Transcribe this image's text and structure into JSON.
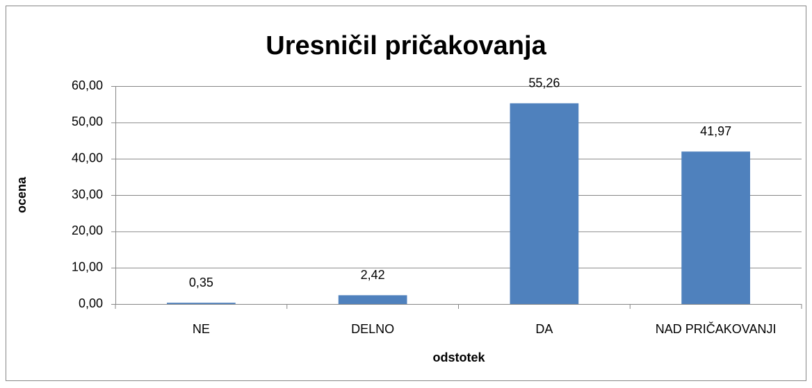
{
  "chart_data": {
    "type": "bar",
    "title": "Uresničil pričakovanja",
    "categories": [
      "NE",
      "DELNO",
      "DA",
      "NAD PRIČAKOVANJI"
    ],
    "values": [
      0.35,
      2.42,
      55.26,
      41.97
    ],
    "value_labels": [
      "0,35",
      "2,42",
      "55,26",
      "41,97"
    ],
    "color": "#4f81bd",
    "x_label": "odstotek",
    "y_label": "ocena",
    "ylim": [
      0,
      60
    ],
    "yticks": [
      {
        "value": 0,
        "label": "0,00"
      },
      {
        "value": 10,
        "label": "10,00"
      },
      {
        "value": 20,
        "label": "20,00"
      },
      {
        "value": 30,
        "label": "30,00"
      },
      {
        "value": 40,
        "label": "40,00"
      },
      {
        "value": 50,
        "label": "50,00"
      },
      {
        "value": 60,
        "label": "60,00"
      }
    ],
    "grid": true
  }
}
